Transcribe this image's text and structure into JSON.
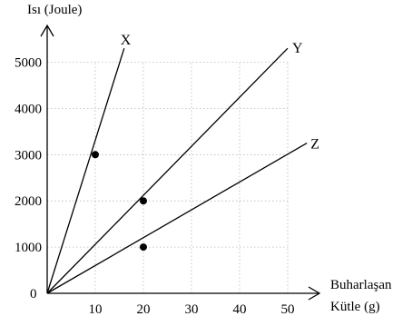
{
  "chart_data": {
    "type": "line",
    "xlabel_lines": [
      "Buharlaşan",
      "Kütle (g)"
    ],
    "ylabel": "Isı (Joule)",
    "origin_label": "0",
    "x_ticks": [
      10,
      20,
      30,
      40,
      50
    ],
    "y_ticks": [
      1000,
      2000,
      3000,
      4000,
      5000
    ],
    "xlim": [
      0,
      54
    ],
    "ylim": [
      0,
      5400
    ],
    "grid": true,
    "series": [
      {
        "name": "X",
        "x": [
          0,
          16
        ],
        "y": [
          0,
          5300
        ],
        "points": [
          [
            10,
            3000
          ]
        ]
      },
      {
        "name": "Y",
        "x": [
          0,
          50
        ],
        "y": [
          0,
          5300
        ],
        "points": [
          [
            20,
            2000
          ]
        ]
      },
      {
        "name": "Z",
        "x": [
          0,
          54
        ],
        "y": [
          0,
          3250
        ],
        "points": [
          [
            20,
            1000
          ]
        ]
      }
    ]
  }
}
